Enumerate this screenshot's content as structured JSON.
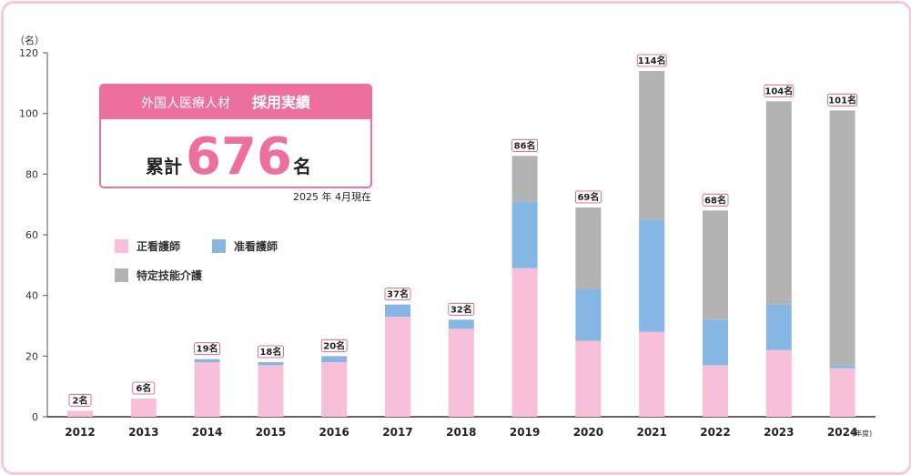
{
  "chart_data": {
    "type": "bar",
    "stacked": true,
    "y_unit": "（名）",
    "x_unit": "(年度)",
    "ylim": [
      0,
      120
    ],
    "yticks": [
      0,
      20,
      40,
      60,
      80,
      100,
      120
    ],
    "categories": [
      "2012",
      "2013",
      "2014",
      "2015",
      "2016",
      "2017",
      "2018",
      "2019",
      "2020",
      "2021",
      "2022",
      "2023",
      "2024"
    ],
    "total_labels": [
      "2名",
      "6名",
      "19名",
      "18名",
      "20名",
      "37名",
      "32名",
      "86名",
      "69名",
      "114名",
      "68名",
      "104名",
      "101名"
    ],
    "series": [
      {
        "name": "正看護師",
        "color": "#f7c0d8",
        "values": [
          2,
          6,
          18,
          17,
          18,
          33,
          29,
          49,
          25,
          28,
          17,
          22,
          16
        ]
      },
      {
        "name": "准看護師",
        "color": "#86b6e4",
        "values": [
          0,
          0,
          1,
          1,
          2,
          4,
          3,
          22,
          17,
          37,
          15,
          15,
          1
        ]
      },
      {
        "name": "特定技能介護",
        "color": "#b3b3b3",
        "values": [
          0,
          0,
          0,
          0,
          0,
          0,
          0,
          15,
          27,
          49,
          36,
          67,
          84
        ]
      }
    ],
    "legend_placement": "top-left",
    "grid": false
  },
  "summary": {
    "heading_left": "外国人医療人材",
    "heading_right": "採用実績",
    "prefix": "累計",
    "total": "676",
    "suffix": "名",
    "as_of": "2025 年 4月現在"
  },
  "colors": {
    "accent": "#ec6f9d",
    "frame": "#f4c9da",
    "label_border": "#d94b7b"
  }
}
